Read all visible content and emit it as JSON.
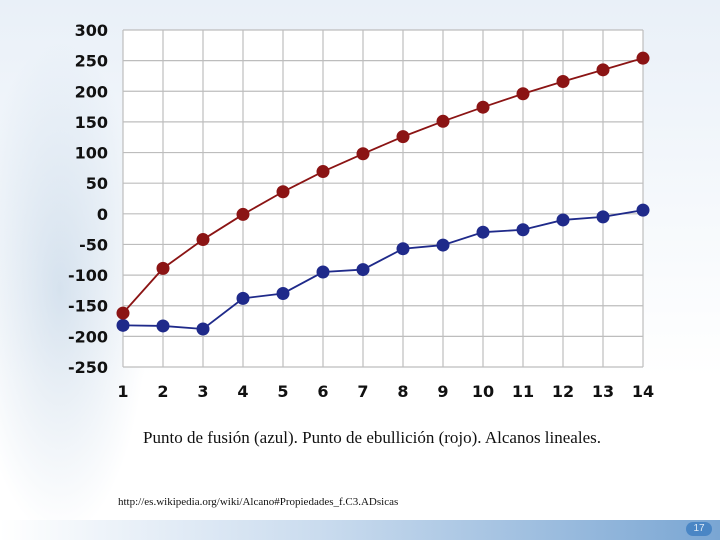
{
  "chart_data": {
    "type": "line",
    "x": [
      1,
      2,
      3,
      4,
      5,
      6,
      7,
      8,
      9,
      10,
      11,
      12,
      13,
      14
    ],
    "series": [
      {
        "values": [
          -182,
          -183,
          -188,
          -138,
          -130,
          -95,
          -91,
          -57,
          -51,
          -30,
          -26,
          -10,
          -5,
          6
        ],
        "color": "#1f2a8a"
      },
      {
        "values": [
          -162,
          -89,
          -42,
          -1,
          36,
          69,
          98,
          126,
          151,
          174,
          196,
          216,
          235,
          254
        ],
        "color": "#8b1414"
      }
    ],
    "ylim": [
      -250,
      300
    ],
    "yticks": [
      -250,
      -200,
      -150,
      -100,
      -50,
      0,
      50,
      100,
      150,
      200,
      250,
      300
    ],
    "xticks": [
      1,
      2,
      3,
      4,
      5,
      6,
      7,
      8,
      9,
      10,
      11,
      12,
      13,
      14
    ],
    "grid": true
  },
  "caption": "Punto de fusión (azul). Punto de ebullición (rojo). Alcanos lineales.",
  "source_url": "http://es.wikipedia.org/wiki/Alcano#Propiedades_f.C3.ADsicas",
  "page_number": "17"
}
